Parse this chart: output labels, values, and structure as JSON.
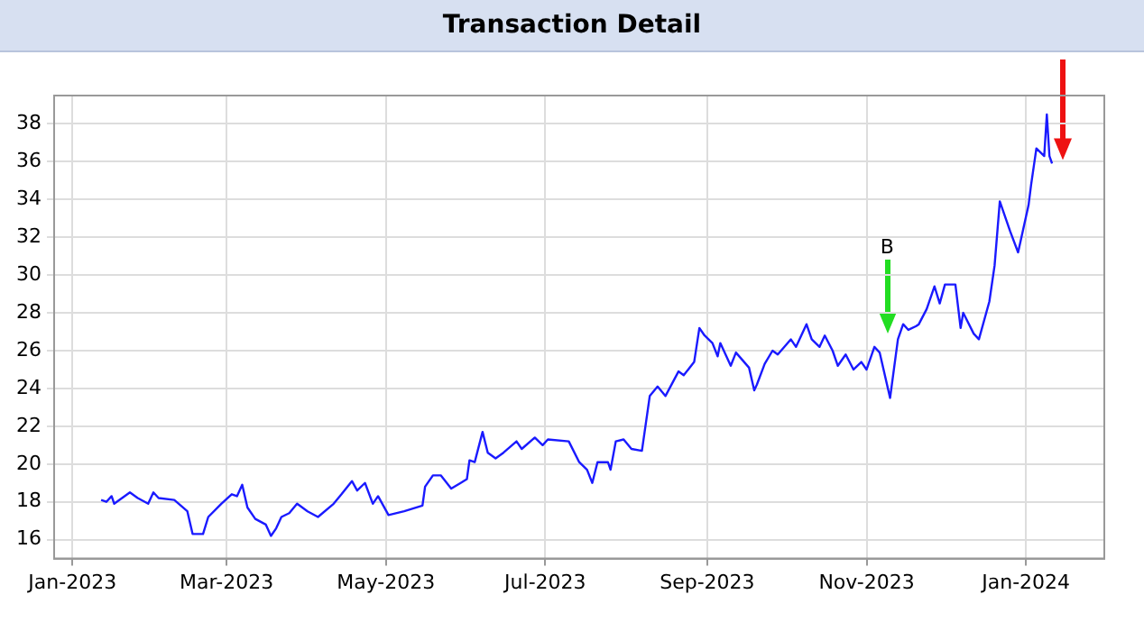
{
  "chart_data": {
    "type": "line",
    "title": "Transaction Detail",
    "x": [
      "2023-01-12",
      "2023-01-14",
      "2023-01-16",
      "2023-01-17",
      "2023-01-23",
      "2023-01-26",
      "2023-01-30",
      "2023-02-01",
      "2023-02-03",
      "2023-02-09",
      "2023-02-14",
      "2023-02-16",
      "2023-02-20",
      "2023-02-22",
      "2023-02-27",
      "2023-03-03",
      "2023-03-05",
      "2023-03-07",
      "2023-03-09",
      "2023-03-12",
      "2023-03-16",
      "2023-03-18",
      "2023-03-20",
      "2023-03-22",
      "2023-03-25",
      "2023-03-28",
      "2023-04-01",
      "2023-04-05",
      "2023-04-11",
      "2023-04-14",
      "2023-04-18",
      "2023-04-20",
      "2023-04-23",
      "2023-04-26",
      "2023-04-28",
      "2023-05-02",
      "2023-05-08",
      "2023-05-15",
      "2023-05-16",
      "2023-05-19",
      "2023-05-22",
      "2023-05-26",
      "2023-06-01",
      "2023-06-02",
      "2023-06-04",
      "2023-06-07",
      "2023-06-09",
      "2023-06-12",
      "2023-06-15",
      "2023-06-20",
      "2023-06-22",
      "2023-06-27",
      "2023-06-30",
      "2023-07-02",
      "2023-07-10",
      "2023-07-14",
      "2023-07-17",
      "2023-07-19",
      "2023-07-21",
      "2023-07-25",
      "2023-07-26",
      "2023-07-28",
      "2023-07-31",
      "2023-08-03",
      "2023-08-07",
      "2023-08-10",
      "2023-08-13",
      "2023-08-16",
      "2023-08-21",
      "2023-08-23",
      "2023-08-27",
      "2023-08-29",
      "2023-08-31",
      "2023-09-03",
      "2023-09-05",
      "2023-09-06",
      "2023-09-10",
      "2023-09-12",
      "2023-09-17",
      "2023-09-19",
      "2023-09-20",
      "2023-09-23",
      "2023-09-26",
      "2023-09-28",
      "2023-10-03",
      "2023-10-05",
      "2023-10-09",
      "2023-10-11",
      "2023-10-14",
      "2023-10-16",
      "2023-10-19",
      "2023-10-21",
      "2023-10-24",
      "2023-10-27",
      "2023-10-30",
      "2023-11-01",
      "2023-11-04",
      "2023-11-06",
      "2023-11-10",
      "2023-11-13",
      "2023-11-15",
      "2023-11-17",
      "2023-11-20",
      "2023-11-21",
      "2023-11-24",
      "2023-11-27",
      "2023-11-29",
      "2023-12-01",
      "2023-12-05",
      "2023-12-07",
      "2023-12-08",
      "2023-12-12",
      "2023-12-14",
      "2023-12-18",
      "2023-12-20",
      "2023-12-22",
      "2023-12-26",
      "2023-12-29",
      "2024-01-02",
      "2024-01-03",
      "2024-01-05",
      "2024-01-08",
      "2024-01-09",
      "2024-01-10",
      "2024-01-11"
    ],
    "series": [
      {
        "color": "#1a1aff",
        "values": [
          18.1,
          18.0,
          18.3,
          17.9,
          18.5,
          18.2,
          17.9,
          18.5,
          18.2,
          18.1,
          17.5,
          16.3,
          16.3,
          17.2,
          17.9,
          18.4,
          18.3,
          18.9,
          17.7,
          17.1,
          16.8,
          16.2,
          16.6,
          17.2,
          17.4,
          17.9,
          17.5,
          17.2,
          17.9,
          18.4,
          19.1,
          18.6,
          19.0,
          17.9,
          18.3,
          17.3,
          17.5,
          17.8,
          18.8,
          19.4,
          19.4,
          18.7,
          19.2,
          20.2,
          20.1,
          21.7,
          20.6,
          20.3,
          20.6,
          21.2,
          20.8,
          21.4,
          21.0,
          21.3,
          21.2,
          20.1,
          19.7,
          19.0,
          20.1,
          20.1,
          19.7,
          21.2,
          21.3,
          20.8,
          20.7,
          23.6,
          24.1,
          23.6,
          24.9,
          24.7,
          25.4,
          27.2,
          26.8,
          26.4,
          25.7,
          26.4,
          25.2,
          25.9,
          25.1,
          23.9,
          24.2,
          25.3,
          26.0,
          25.8,
          26.6,
          26.2,
          27.4,
          26.6,
          26.2,
          26.8,
          26.0,
          25.2,
          25.8,
          25.0,
          25.4,
          25.0,
          26.2,
          25.9,
          23.5,
          26.6,
          27.4,
          27.1,
          27.3,
          27.4,
          28.2,
          29.4,
          28.5,
          29.5,
          29.5,
          27.2,
          28.0,
          26.9,
          26.6,
          28.6,
          30.5,
          33.9,
          32.3,
          31.2,
          33.7,
          34.8,
          36.7,
          36.3,
          38.5,
          36.3,
          35.9
        ]
      }
    ],
    "xlim": [
      "2022-12-25",
      "2024-01-31"
    ],
    "xticks": [
      {
        "value": "2023-01-01",
        "label": "Jan-2023"
      },
      {
        "value": "2023-03-01",
        "label": "Mar-2023"
      },
      {
        "value": "2023-05-01",
        "label": "May-2023"
      },
      {
        "value": "2023-07-01",
        "label": "Jul-2023"
      },
      {
        "value": "2023-09-01",
        "label": "Sep-2023"
      },
      {
        "value": "2023-11-01",
        "label": "Nov-2023"
      },
      {
        "value": "2024-01-01",
        "label": "Jan-2024"
      }
    ],
    "ylim": [
      15,
      39.5
    ],
    "yticks": [
      16,
      18,
      20,
      22,
      24,
      26,
      28,
      30,
      32,
      34,
      36,
      38
    ],
    "annotations": [
      "B"
    ],
    "grid": true,
    "legend": false,
    "marker": "none",
    "line_style": "solid"
  }
}
